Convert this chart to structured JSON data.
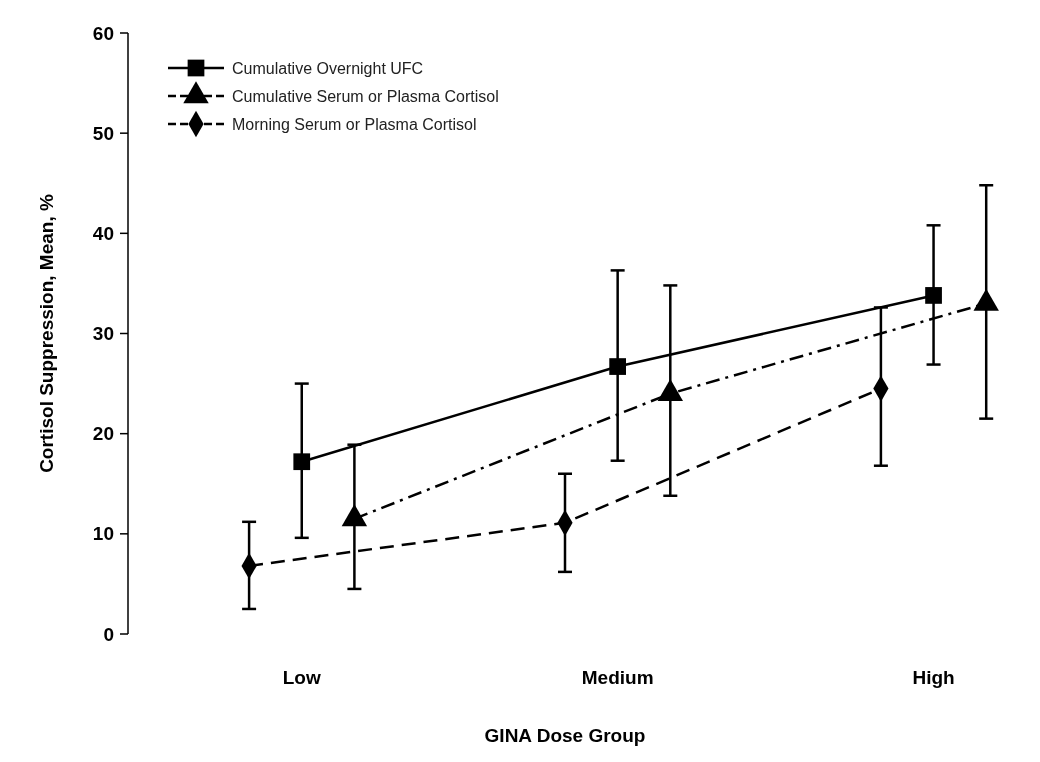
{
  "chart_data": {
    "type": "line",
    "xlabel": "GINA Dose Group",
    "ylabel": "Cortisol Suppression, Mean, %",
    "categories": [
      null,
      null,
      null,
      "Low",
      null,
      null,
      null,
      null,
      null,
      "Medium",
      null,
      null,
      null,
      null,
      null,
      "High",
      null
    ],
    "ylim": [
      0,
      60
    ],
    "yticks": [
      0,
      10,
      20,
      30,
      40,
      50,
      60
    ],
    "grid": false,
    "legend": "top left",
    "series": [
      {
        "name": "Cumulative Overnight UFC",
        "color": "#000000",
        "marker": "square",
        "line_style": "solid",
        "values": [
          null,
          null,
          null,
          17.2,
          null,
          null,
          null,
          null,
          null,
          26.7,
          null,
          null,
          null,
          null,
          null,
          33.8,
          null
        ],
        "errors": [
          null,
          null,
          null,
          [
            9.6,
            25.0
          ],
          null,
          null,
          null,
          null,
          null,
          [
            17.3,
            36.3
          ],
          null,
          null,
          null,
          null,
          null,
          [
            26.9,
            40.8
          ],
          null
        ]
      },
      {
        "name": "Cumulative Serum or Plasma Cortisol",
        "color": "#000000",
        "marker": "triangle",
        "line_style": "dashdot",
        "values": [
          null,
          null,
          null,
          null,
          11.5,
          null,
          null,
          null,
          null,
          null,
          24.0,
          null,
          null,
          null,
          null,
          null,
          33.0
        ],
        "errors": [
          null,
          null,
          null,
          null,
          [
            4.5,
            18.9
          ],
          null,
          null,
          null,
          null,
          null,
          [
            13.8,
            34.8
          ],
          null,
          null,
          null,
          null,
          null,
          [
            21.5,
            44.8
          ]
        ]
      },
      {
        "name": "Morning Serum or Plasma Cortisol",
        "color": "#000000",
        "marker": "diamond",
        "line_style": "dashed",
        "values": [
          null,
          null,
          6.8,
          null,
          null,
          null,
          null,
          null,
          11.1,
          null,
          null,
          null,
          null,
          null,
          24.5,
          null,
          null
        ],
        "errors": [
          null,
          null,
          [
            2.5,
            11.2
          ],
          null,
          null,
          null,
          null,
          null,
          [
            6.2,
            16.0
          ],
          null,
          null,
          null,
          null,
          null,
          [
            16.8,
            32.6
          ],
          null,
          null
        ]
      }
    ]
  }
}
